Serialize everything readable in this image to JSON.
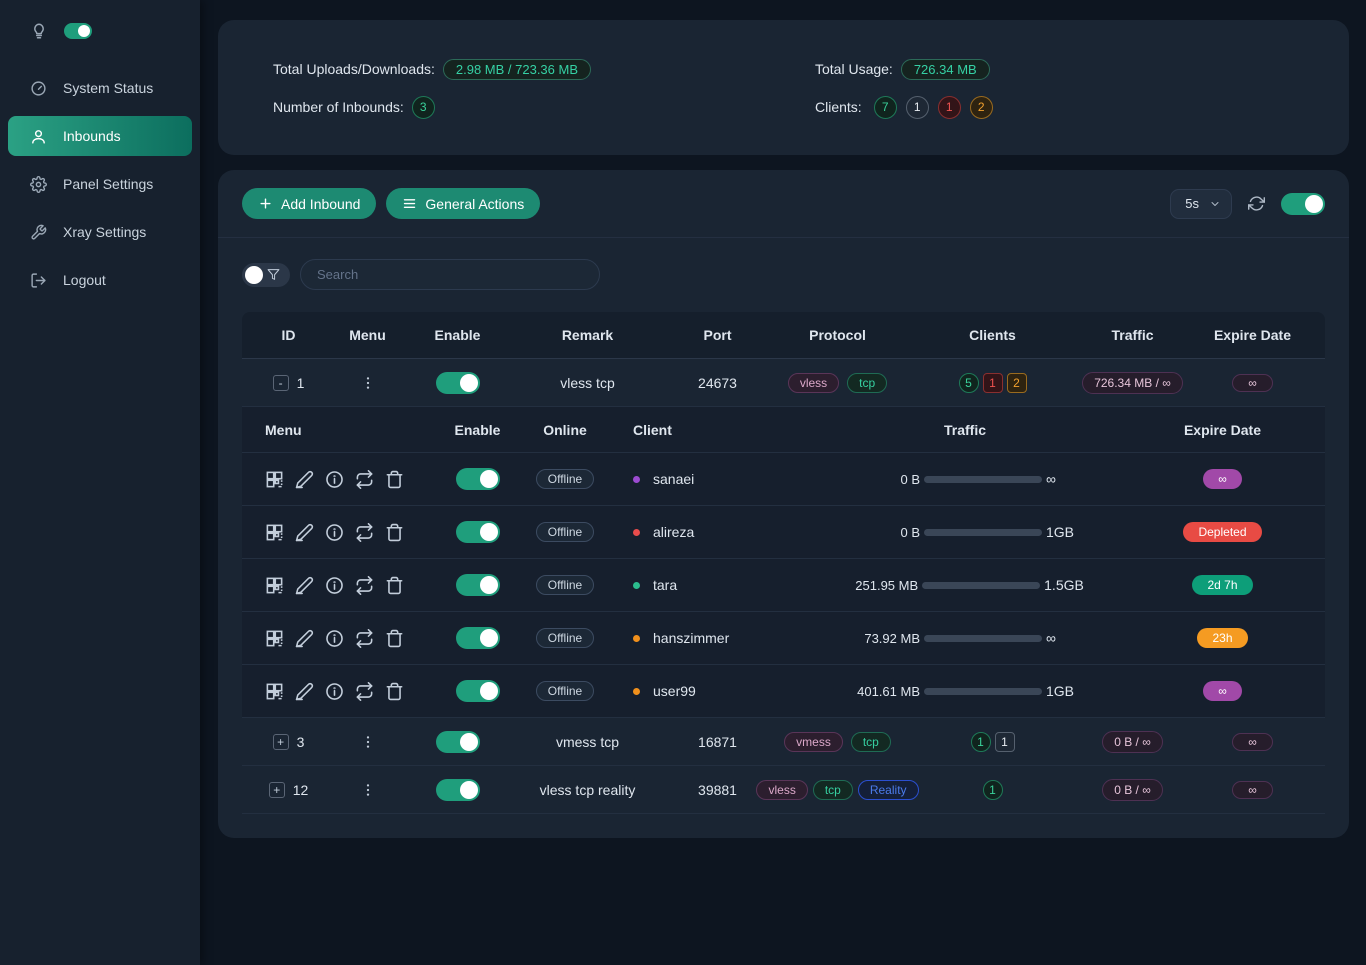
{
  "colors": {
    "accent_teal": "#1d8a72",
    "switch_on": "#1f9e7c",
    "badge_purple": "#a149a8",
    "badge_red": "#e84b44",
    "badge_teal": "#0d9e79",
    "badge_orange": "#f59b22",
    "bar_magenta": "#7c2b61",
    "bar_green": "#16a97f",
    "bar_orange": "#f08c1e",
    "bar_track": "#3a4657"
  },
  "sidebar": {
    "items": [
      {
        "label": "System Status"
      },
      {
        "label": "Inbounds"
      },
      {
        "label": "Panel Settings"
      },
      {
        "label": "Xray Settings"
      },
      {
        "label": "Logout"
      }
    ]
  },
  "stats": {
    "uploads_label": "Total Uploads/Downloads:",
    "uploads_value": "2.98 MB / 723.36 MB",
    "inbounds_label": "Number of Inbounds:",
    "inbounds_value": "3",
    "usage_label": "Total Usage:",
    "usage_value": "726.34 MB",
    "clients_label": "Clients:",
    "client_badges": [
      {
        "value": "7",
        "status": "online-green"
      },
      {
        "value": "1",
        "status": "neutral-gray"
      },
      {
        "value": "1",
        "status": "depleted-red"
      },
      {
        "value": "2",
        "status": "expiring-orange"
      }
    ]
  },
  "toolbar": {
    "add_inbound": "Add Inbound",
    "general_actions": "General Actions",
    "refresh_interval": "5s"
  },
  "search": {
    "placeholder": "Search"
  },
  "inbounds_table": {
    "columns": [
      "ID",
      "Menu",
      "Enable",
      "Remark",
      "Port",
      "Protocol",
      "Clients",
      "Traffic",
      "Expire Date"
    ],
    "rows": [
      {
        "id": "1",
        "expand": "-",
        "remark": "vless tcp",
        "port": "24673",
        "protocols": [
          "vless",
          "tcp"
        ],
        "client_counts": [
          {
            "value": "5",
            "status": "green"
          },
          {
            "value": "1",
            "status": "red"
          },
          {
            "value": "2",
            "status": "orange"
          }
        ],
        "traffic": "726.34 MB / ∞",
        "expire": "∞"
      },
      {
        "id": "3",
        "expand": "+",
        "remark": "vmess tcp",
        "port": "16871",
        "protocols": [
          "vmess",
          "tcp"
        ],
        "client_counts": [
          {
            "value": "1",
            "status": "green"
          },
          {
            "value": "1",
            "status": "gray"
          }
        ],
        "traffic": "0 B / ∞",
        "expire": "∞"
      },
      {
        "id": "12",
        "expand": "+",
        "remark": "vless tcp reality",
        "port": "39881",
        "protocols": [
          "vless",
          "tcp",
          "Reality"
        ],
        "client_counts": [
          {
            "value": "1",
            "status": "green"
          }
        ],
        "traffic": "0 B / ∞",
        "expire": "∞"
      }
    ]
  },
  "clients_table": {
    "columns": [
      "Menu",
      "Enable",
      "Online",
      "Client",
      "Traffic",
      "Expire Date"
    ],
    "rows": [
      {
        "online": "Offline",
        "name": "sanaei",
        "dot": "#9c4bd1",
        "used": "0 B",
        "limit": "∞",
        "pct": 100,
        "bar": "#7c2b61",
        "expire": "∞",
        "expire_bg": "#a149a8"
      },
      {
        "online": "Offline",
        "name": "alireza",
        "dot": "#e84c4c",
        "used": "0 B",
        "limit": "1GB",
        "pct": 0,
        "bar": "#3a4657",
        "expire": "Depleted",
        "expire_bg": "#e84b44"
      },
      {
        "online": "Offline",
        "name": "tara",
        "dot": "#2bbd8e",
        "used": "251.95 MB",
        "limit": "1.5GB",
        "pct": 16,
        "bar": "#16a97f",
        "expire": "2d 7h",
        "expire_bg": "#0d9e79"
      },
      {
        "online": "Offline",
        "name": "hanszimmer",
        "dot": "#f1901c",
        "used": "73.92 MB",
        "limit": "∞",
        "pct": 100,
        "bar": "#7c2b61",
        "expire": "23h",
        "expire_bg": "#f59b22"
      },
      {
        "online": "Offline",
        "name": "user99",
        "dot": "#f1901c",
        "used": "401.61 MB",
        "limit": "1GB",
        "pct": 39,
        "bar": "#f08c1e",
        "expire": "∞",
        "expire_bg": "#a149a8"
      }
    ]
  }
}
